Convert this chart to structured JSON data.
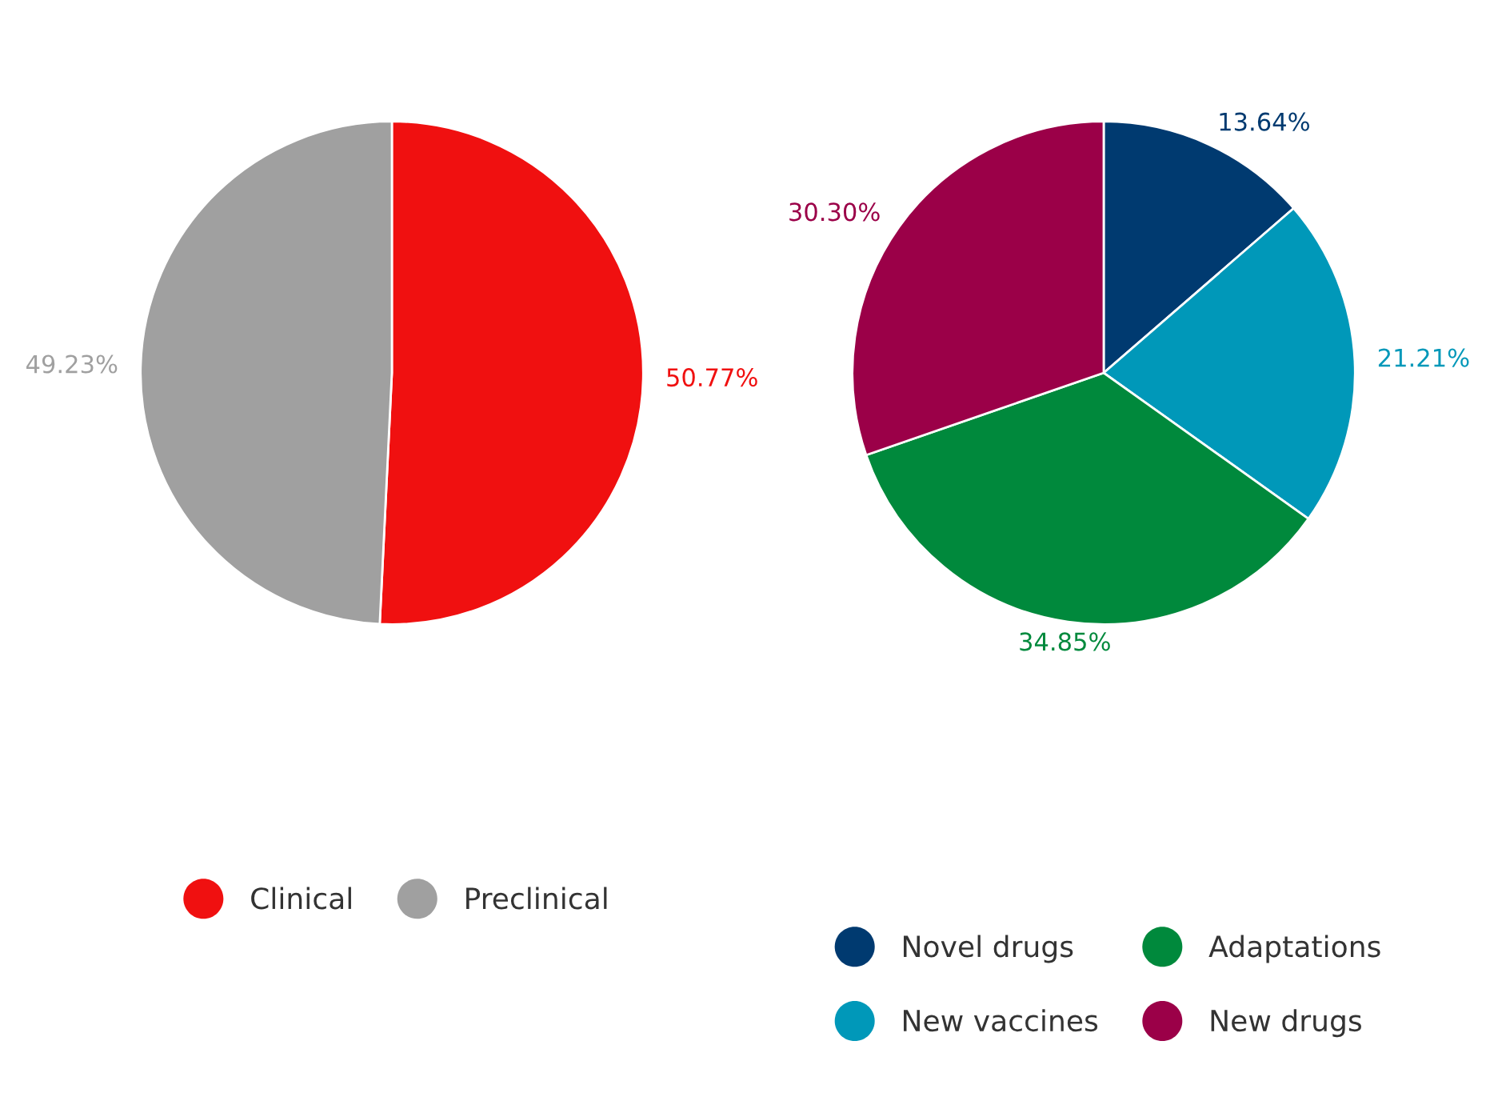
{
  "chart_data": [
    {
      "type": "pie",
      "categories": [
        "Clinical",
        "Preclinical"
      ],
      "values": [
        50.77,
        49.23
      ],
      "colors": [
        "#f01010",
        "#a0a0a0"
      ],
      "value_labels": [
        "50.77%",
        "49.23%"
      ],
      "legend": "bottom"
    },
    {
      "type": "pie",
      "categories": [
        "Novel drugs",
        "New vaccines",
        "Adaptations",
        "New drugs"
      ],
      "values": [
        13.64,
        21.21,
        34.85,
        30.3
      ],
      "colors": [
        "#003a70",
        "#0098b9",
        "#00893c",
        "#9b0048"
      ],
      "value_labels": [
        "13.64%",
        "21.21%",
        "34.85%",
        "30.30%"
      ],
      "legend": "bottom"
    }
  ]
}
